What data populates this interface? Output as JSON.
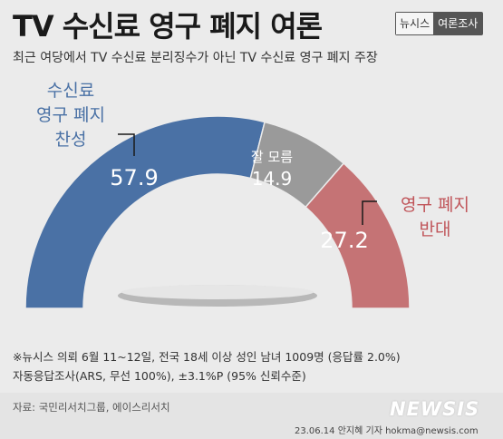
{
  "title": "TV 수신료 영구 폐지 여론",
  "brand": {
    "name": "뉴시스",
    "tag": "여론조사"
  },
  "subtitle": "최근 여당에서 TV 수신료 분리징수가 아닌 TV 수신료 영구 폐지 주장",
  "chart_data": {
    "type": "pie",
    "shape": "semi-donut",
    "categories": [
      "수신료 영구 폐지 찬성",
      "잘 모름",
      "영구 폐지 반대"
    ],
    "values": [
      57.9,
      14.9,
      27.2
    ],
    "value_labels": [
      "57.9",
      "14.9",
      "27.2"
    ],
    "category_labels": [
      [
        "수신료",
        "영구 폐지",
        "찬성"
      ],
      [
        "잘 모름"
      ],
      [
        "영구 폐지",
        "반대"
      ]
    ],
    "colors": [
      "#4a71a5",
      "#9a9a9a",
      "#c57375"
    ],
    "label_colors": [
      "#4a71a5",
      "#ffffff",
      "#c0555a"
    ]
  },
  "notes": {
    "line1": "※뉴시스 의뢰 6월 11~12일, 전국 18세 이상 성인 남녀 1009명 (응답률 2.0%)",
    "line2": "자동응답조사(ARS, 무선 100%), ±3.1%P (95% 신뢰수준)"
  },
  "source": "자료: 국민리서치그룹, 에이스리서치",
  "credit": "23.06.14 안지혜 기자 hokma@newsis.com",
  "watermark": "NEWSIS"
}
